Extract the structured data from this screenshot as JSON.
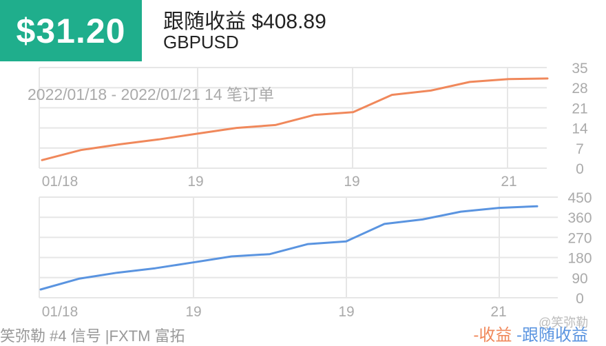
{
  "header": {
    "badge_value": "$31.20",
    "title": "跟随收益 $408.89",
    "symbol": "GBPUSD",
    "badge_color": "#1fae8c"
  },
  "date_range": "2022/01/18 - 2022/01/21 14 笔订单",
  "footer": {
    "text": "笑弥勒 #4 信号 |FXTM 富拓",
    "watermark": "@笑弥勒"
  },
  "legend": {
    "profit": "收益",
    "separator": "-",
    "follow": "跟随收益"
  },
  "chart_data": [
    {
      "type": "line",
      "series": [
        {
          "name": "收益",
          "color": "#f0885b",
          "values": [
            2.8,
            6.3,
            8.3,
            10.0,
            12.0,
            14.0,
            15.0,
            18.5,
            19.5,
            25.5,
            27.0,
            30.0,
            31.0,
            31.2
          ]
        }
      ],
      "x_tick_labels": [
        "01/18",
        "19",
        "19",
        "21"
      ],
      "y_ticks": [
        0,
        7,
        14,
        21,
        28,
        35
      ],
      "ylim": [
        0,
        35
      ]
    },
    {
      "type": "line",
      "series": [
        {
          "name": "跟随收益",
          "color": "#5a94e0",
          "values": [
            37,
            85,
            112,
            132,
            158,
            185,
            195,
            240,
            252,
            330,
            350,
            385,
            402,
            408.89
          ]
        }
      ],
      "x_tick_labels": [
        "01/18",
        "19",
        "19",
        "21"
      ],
      "y_ticks": [
        0,
        90,
        180,
        270,
        360,
        450
      ],
      "ylim": [
        0,
        450
      ]
    }
  ]
}
